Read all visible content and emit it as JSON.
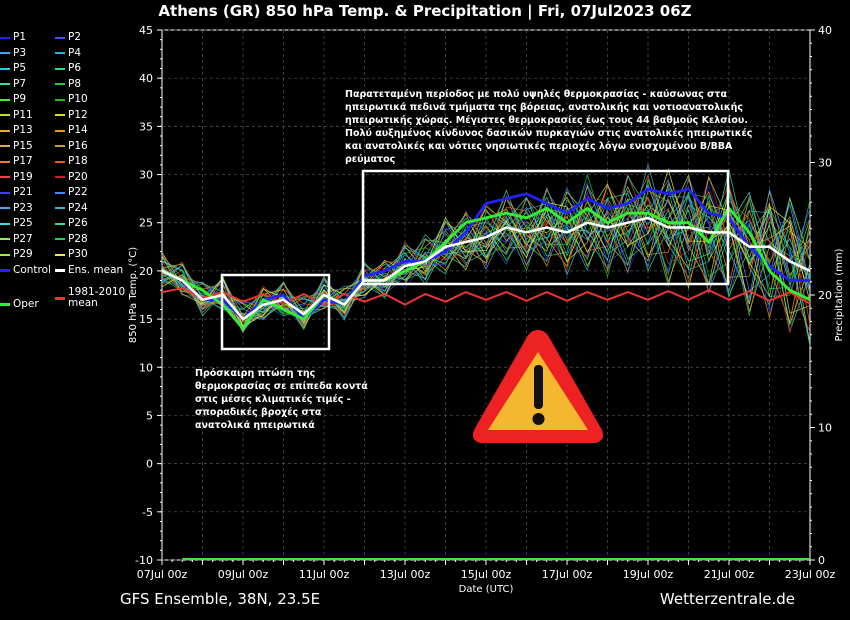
{
  "title": "Athens  (GR)  850 hPa Temp. & Precipitation | Fri, 07Jul2023 06Z",
  "footer": {
    "left": "GFS Ensemble, 38N, 23.5E",
    "right": "Wetterzentrale.de"
  },
  "legend": [
    {
      "label": "P1",
      "color": "#2222ff"
    },
    {
      "label": "P2",
      "color": "#3355ff"
    },
    {
      "label": "P3",
      "color": "#33aaff"
    },
    {
      "label": "P4",
      "color": "#22bbdd"
    },
    {
      "label": "P5",
      "color": "#22ccdd"
    },
    {
      "label": "P6",
      "color": "#22dd88"
    },
    {
      "label": "P7",
      "color": "#33ddaa"
    },
    {
      "label": "P8",
      "color": "#22cc44"
    },
    {
      "label": "P9",
      "color": "#44ee22"
    },
    {
      "label": "P10",
      "color": "#22bb22"
    },
    {
      "label": "P11",
      "color": "#ccdd22"
    },
    {
      "label": "P12",
      "color": "#dddd22"
    },
    {
      "label": "P13",
      "color": "#eeaa22"
    },
    {
      "label": "P14",
      "color": "#ee9922"
    },
    {
      "label": "P15",
      "color": "#ddaa55"
    },
    {
      "label": "P16",
      "color": "#cc9944"
    },
    {
      "label": "P17",
      "color": "#ee7733"
    },
    {
      "label": "P18",
      "color": "#ee5522"
    },
    {
      "label": "P19",
      "color": "#ee4444"
    },
    {
      "label": "P20",
      "color": "#cc2222"
    },
    {
      "label": "P21",
      "color": "#3344ff"
    },
    {
      "label": "P22",
      "color": "#4488ff"
    },
    {
      "label": "P23",
      "color": "#44aaee"
    },
    {
      "label": "P24",
      "color": "#33bbcc"
    },
    {
      "label": "P25",
      "color": "#33dddd"
    },
    {
      "label": "P26",
      "color": "#33ddaa"
    },
    {
      "label": "P27",
      "color": "#99ee55"
    },
    {
      "label": "P28",
      "color": "#22cc55"
    },
    {
      "label": "P29",
      "color": "#aaee22"
    },
    {
      "label": "P30",
      "color": "#eeee44"
    },
    {
      "label": "Control",
      "color": "#2222ff",
      "thick": true
    },
    {
      "label": "Ens. mean",
      "color": "#ffffff",
      "thick": true
    },
    {
      "label": "Oper",
      "color": "#33ee33",
      "thick": true
    },
    {
      "label": "1981-2010 mean",
      "color": "#ee3333",
      "thick": true
    }
  ],
  "notes": {
    "top": "Παρατεταμένη περίοδος με πολύ υψηλές θερμοκρασίας - καύσωνας στα ηπειρωτικά πεδινά τμήματα της βόρειας, ανατολικής και νοτιοανατολικής ηπειρωτικής χώρας. Μέγιστες θερμοκρασίες έως τους 44 βαθμούς Κελσίου. Πολύ αυξημένος κίνδυνος δασικών πυρκαγιών στις ανατολικές ηπειρωτικές και ανατολικές και νότιες νησιωτικές περιοχές λόγω ενισχυμένου Β/ΒΒΑ ρεύματος",
    "left": "Πρόσκαιρη πτώση της θερμοκρασίας σε επίπεδα κοντά στις μέσες κλιματικές τιμές - σποραδικές βροχές στα ανατολικά ηπειρωτικά"
  },
  "chart_data": {
    "type": "line",
    "xlabel": "Date (UTC)",
    "ylabel": "850 hPa Temp. (°C)",
    "y2label": "Precipitation (mm)",
    "ylim": [
      -10,
      45
    ],
    "y2lim": [
      0,
      40
    ],
    "yticks": [
      -10,
      -5,
      0,
      5,
      10,
      15,
      20,
      25,
      30,
      35,
      40,
      45
    ],
    "y2ticks": [
      0,
      10,
      20,
      30,
      40
    ],
    "xlim": [
      "2023-07-07",
      "2023-07-23"
    ],
    "xticks": [
      "07Jul 00z",
      "09Jul 00z",
      "11Jul 00z",
      "13Jul 00z",
      "15Jul 00z",
      "17Jul 00z",
      "19Jul 00z",
      "21Jul 00z",
      "23Jul 00z"
    ],
    "grid": true,
    "legend_position": "left",
    "series": [
      {
        "name": "Ens. mean",
        "color": "#ffffff",
        "x_days": [
          0,
          0.5,
          1,
          1.5,
          2,
          2.5,
          3,
          3.5,
          4,
          4.5,
          5,
          5.5,
          6,
          6.5,
          7,
          7.5,
          8,
          8.5,
          9,
          9.5,
          10,
          10.5,
          11,
          11.5,
          12,
          12.5,
          13,
          13.5,
          14,
          14.5,
          15,
          15.5,
          16
        ],
        "values": [
          20,
          19,
          17,
          17.5,
          15,
          16.5,
          17,
          15.5,
          17.5,
          16.5,
          19,
          19,
          20.5,
          21,
          22.5,
          23,
          23.5,
          24.5,
          24,
          24.5,
          24,
          25,
          24.5,
          25,
          25.5,
          24.5,
          24.5,
          24,
          24,
          22.5,
          22.5,
          21,
          20
        ]
      },
      {
        "name": "Control",
        "color": "#2222ff",
        "x_days": [
          0,
          0.5,
          1,
          1.5,
          2,
          2.5,
          3,
          3.5,
          4,
          4.5,
          5,
          5.5,
          6,
          6.5,
          7,
          7.5,
          8,
          8.5,
          9,
          9.5,
          10,
          10.5,
          11,
          11.5,
          12,
          12.5,
          13,
          13.5,
          14,
          14.5,
          15,
          15.5,
          16
        ],
        "values": [
          20,
          19,
          17,
          17,
          15,
          17,
          17.5,
          15,
          17,
          16.5,
          19.5,
          20,
          21,
          21,
          22,
          24,
          27,
          27.5,
          28,
          27,
          26,
          27.5,
          26.5,
          27,
          28.5,
          28,
          28.5,
          26,
          25.5,
          22.5,
          20.5,
          19,
          19
        ]
      },
      {
        "name": "Oper",
        "color": "#33ee33",
        "x_days": [
          0,
          0.5,
          1,
          1.5,
          2,
          2.5,
          3,
          3.5,
          4,
          4.5,
          5,
          5.5,
          6,
          6.5,
          7,
          7.5,
          8,
          8.5,
          9,
          9.5,
          10,
          10.5,
          11,
          11.5,
          12,
          12.5,
          13,
          13.5,
          14,
          14.5,
          15,
          15.5,
          16
        ],
        "values": [
          20,
          19,
          18,
          16.5,
          14,
          17,
          16,
          15,
          17.5,
          16.5,
          19,
          19,
          20,
          21,
          23,
          25,
          25.5,
          26,
          25.5,
          26.5,
          25,
          26.5,
          25,
          26,
          26,
          25,
          25,
          23,
          26.5,
          24,
          20,
          18,
          17
        ]
      },
      {
        "name": "1981-2010 mean",
        "color": "#ee3333",
        "x_days": [
          0,
          0.5,
          1,
          1.5,
          2,
          2.5,
          3,
          3.5,
          4,
          4.5,
          5,
          5.5,
          6,
          6.5,
          7,
          7.5,
          8,
          8.5,
          9,
          9.5,
          10,
          10.5,
          11,
          11.5,
          12,
          12.5,
          13,
          13.5,
          14,
          14.5,
          15,
          15.5,
          16
        ],
        "values": [
          17.8,
          18.2,
          17.2,
          17.8,
          16.8,
          17.6,
          16.6,
          17.6,
          16.5,
          17.6,
          16.8,
          17.6,
          16.5,
          17.6,
          16.8,
          17.8,
          17,
          17.8,
          16.9,
          17.8,
          16.9,
          17.8,
          17,
          17.8,
          17,
          17.9,
          17,
          18,
          17,
          17.9,
          16.9,
          17.8,
          16.6
        ]
      }
    ],
    "precipitation_values": [
      0
    ]
  }
}
